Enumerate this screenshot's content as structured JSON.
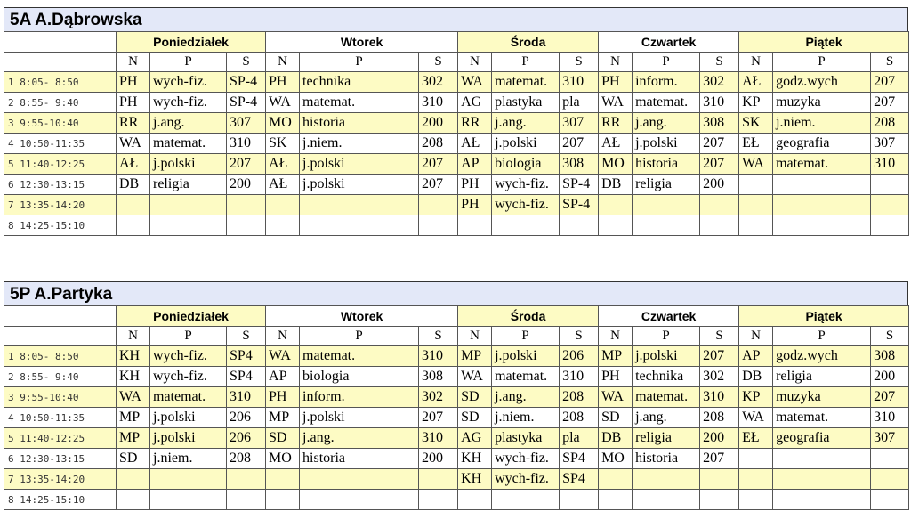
{
  "days": [
    "Poniedziałek",
    "Wtorek",
    "Środa",
    "Czwartek",
    "Piątek"
  ],
  "subheaders": [
    "N",
    "P",
    "S"
  ],
  "hours": [
    "1  8:05- 8:50",
    "2  8:55- 9:40",
    "3  9:55-10:40",
    "4 10:50-11:35",
    "5 11:40-12:25",
    "6 12:30-13:15",
    "7 13:35-14:20",
    "8 14:25-15:10"
  ],
  "plans": [
    {
      "title": "5A  A.Dąbrowska",
      "rows": [
        [
          [
            "PH",
            "wych-fiz.",
            "SP-4"
          ],
          [
            "PH",
            "technika",
            "302"
          ],
          [
            "WA",
            "matemat.",
            "310"
          ],
          [
            "PH",
            "inform.",
            "302"
          ],
          [
            "AŁ",
            "godz.wych",
            "207"
          ]
        ],
        [
          [
            "PH",
            "wych-fiz.",
            "SP-4"
          ],
          [
            "WA",
            "matemat.",
            "310"
          ],
          [
            "AG",
            "plastyka",
            "pla"
          ],
          [
            "WA",
            "matemat.",
            "310"
          ],
          [
            "KP",
            "muzyka",
            "207"
          ]
        ],
        [
          [
            "RR",
            "j.ang.",
            "307"
          ],
          [
            "MO",
            "historia",
            "200"
          ],
          [
            "RR",
            "j.ang.",
            "307"
          ],
          [
            "RR",
            "j.ang.",
            "308"
          ],
          [
            "SK",
            "j.niem.",
            "208"
          ]
        ],
        [
          [
            "WA",
            "matemat.",
            "310"
          ],
          [
            "SK",
            "j.niem.",
            "208"
          ],
          [
            "AŁ",
            "j.polski",
            "207"
          ],
          [
            "AŁ",
            "j.polski",
            "207"
          ],
          [
            "EŁ",
            "geografia",
            "307"
          ]
        ],
        [
          [
            "AŁ",
            "j.polski",
            "207"
          ],
          [
            "AŁ",
            "j.polski",
            "207"
          ],
          [
            "AP",
            "biologia",
            "308"
          ],
          [
            "MO",
            "historia",
            "207"
          ],
          [
            "WA",
            "matemat.",
            "310"
          ]
        ],
        [
          [
            "DB",
            "religia",
            "200"
          ],
          [
            "AŁ",
            "j.polski",
            "207"
          ],
          [
            "PH",
            "wych-fiz.",
            "SP-4"
          ],
          [
            "DB",
            "religia",
            "200"
          ],
          [
            "",
            "",
            ""
          ]
        ],
        [
          [
            "",
            "",
            ""
          ],
          [
            "",
            "",
            ""
          ],
          [
            "PH",
            "wych-fiz.",
            "SP-4"
          ],
          [
            "",
            "",
            ""
          ],
          [
            "",
            "",
            ""
          ]
        ],
        [
          [
            "",
            "",
            ""
          ],
          [
            "",
            "",
            ""
          ],
          [
            "",
            "",
            ""
          ],
          [
            "",
            "",
            ""
          ],
          [
            "",
            "",
            ""
          ]
        ]
      ]
    },
    {
      "title": "5P  A.Partyka",
      "rows": [
        [
          [
            "KH",
            "wych-fiz.",
            "SP4"
          ],
          [
            "WA",
            "matemat.",
            "310"
          ],
          [
            "MP",
            "j.polski",
            "206"
          ],
          [
            "MP",
            "j.polski",
            "207"
          ],
          [
            "AP",
            "godz.wych",
            "308"
          ]
        ],
        [
          [
            "KH",
            "wych-fiz.",
            "SP4"
          ],
          [
            "AP",
            "biologia",
            "308"
          ],
          [
            "WA",
            "matemat.",
            "310"
          ],
          [
            "PH",
            "technika",
            "302"
          ],
          [
            "DB",
            "religia",
            "200"
          ]
        ],
        [
          [
            "WA",
            "matemat.",
            "310"
          ],
          [
            "PH",
            "inform.",
            "302"
          ],
          [
            "SD",
            "j.ang.",
            "208"
          ],
          [
            "WA",
            "matemat.",
            "310"
          ],
          [
            "KP",
            "muzyka",
            "207"
          ]
        ],
        [
          [
            "MP",
            "j.polski",
            "206"
          ],
          [
            "MP",
            "j.polski",
            "207"
          ],
          [
            "SD",
            "j.niem.",
            "208"
          ],
          [
            "SD",
            "j.ang.",
            "208"
          ],
          [
            "WA",
            "matemat.",
            "310"
          ]
        ],
        [
          [
            "MP",
            "j.polski",
            "206"
          ],
          [
            "SD",
            "j.ang.",
            "310"
          ],
          [
            "AG",
            "plastyka",
            "pla"
          ],
          [
            "DB",
            "religia",
            "200"
          ],
          [
            "EŁ",
            "geografia",
            "307"
          ]
        ],
        [
          [
            "SD",
            "j.niem.",
            "208"
          ],
          [
            "MO",
            "historia",
            "200"
          ],
          [
            "KH",
            "wych-fiz.",
            "SP4"
          ],
          [
            "MO",
            "historia",
            "207"
          ],
          [
            "",
            "",
            ""
          ]
        ],
        [
          [
            "",
            "",
            ""
          ],
          [
            "",
            "",
            ""
          ],
          [
            "KH",
            "wych-fiz.",
            "SP4"
          ],
          [
            "",
            "",
            ""
          ],
          [
            "",
            "",
            ""
          ]
        ],
        [
          [
            "",
            "",
            ""
          ],
          [
            "",
            "",
            ""
          ],
          [
            "",
            "",
            ""
          ],
          [
            "",
            "",
            ""
          ],
          [
            "",
            "",
            ""
          ]
        ]
      ]
    }
  ]
}
